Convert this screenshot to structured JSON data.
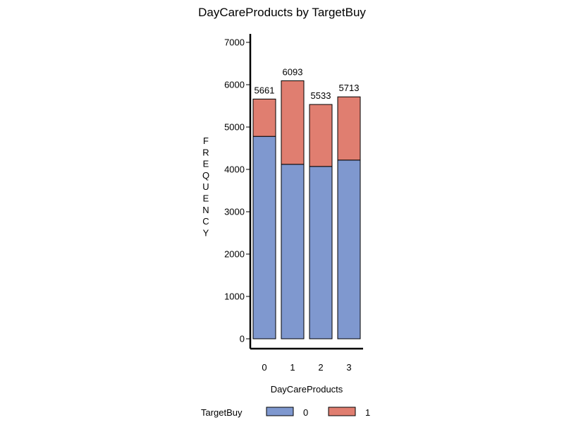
{
  "chart_data": {
    "type": "bar",
    "stacked": true,
    "title": "DayCareProducts  by  TargetBuy",
    "xlabel": "DayCareProducts",
    "ylabel": "FREQUENCY",
    "categories": [
      "0",
      "1",
      "2",
      "3"
    ],
    "ylim": [
      0,
      7200
    ],
    "yticks": [
      0,
      1000,
      2000,
      3000,
      4000,
      5000,
      6000,
      7000
    ],
    "series": [
      {
        "name": "0",
        "color": "#7f98cf",
        "values": [
          4780,
          4120,
          4070,
          4220
        ]
      },
      {
        "name": "1",
        "color": "#e07e70",
        "values": [
          881,
          1973,
          1463,
          1493
        ]
      }
    ],
    "totals": [
      5661,
      6093,
      5533,
      5713
    ],
    "legend": {
      "title": "TargetBuy",
      "position": "bottom"
    },
    "grid": false
  }
}
